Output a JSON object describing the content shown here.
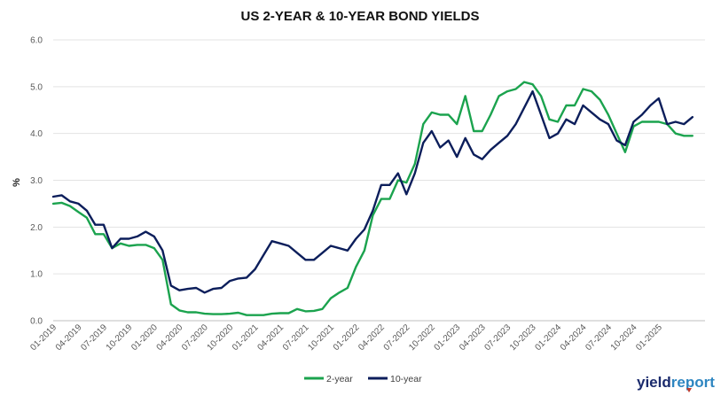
{
  "chart_data": {
    "type": "line",
    "title": "US 2-YEAR & 10-YEAR BOND YIELDS",
    "ylabel": "%",
    "xlabel": "",
    "ylim": [
      0,
      6
    ],
    "y_ticks": [
      "0.0",
      "1.0",
      "2.0",
      "3.0",
      "4.0",
      "5.0",
      "6.0"
    ],
    "x_ticks": [
      "01-2019",
      "04-2019",
      "07-2019",
      "10-2019",
      "01-2020",
      "04-2020",
      "07-2020",
      "10-2020",
      "01-2021",
      "04-2021",
      "07-2021",
      "10-2021",
      "01-2022",
      "04-2022",
      "07-2022",
      "10-2022",
      "01-2023",
      "04-2023",
      "07-2023",
      "10-2023",
      "01-2024",
      "04-2024",
      "07-2024",
      "10-2024",
      "01-2025"
    ],
    "x": [
      "2019-01",
      "2019-02",
      "2019-03",
      "2019-04",
      "2019-05",
      "2019-06",
      "2019-07",
      "2019-08",
      "2019-09",
      "2019-10",
      "2019-11",
      "2019-12",
      "2020-01",
      "2020-02",
      "2020-03",
      "2020-04",
      "2020-05",
      "2020-06",
      "2020-07",
      "2020-08",
      "2020-09",
      "2020-10",
      "2020-11",
      "2020-12",
      "2021-01",
      "2021-02",
      "2021-03",
      "2021-04",
      "2021-05",
      "2021-06",
      "2021-07",
      "2021-08",
      "2021-09",
      "2021-10",
      "2021-11",
      "2021-12",
      "2022-01",
      "2022-02",
      "2022-03",
      "2022-04",
      "2022-05",
      "2022-06",
      "2022-07",
      "2022-08",
      "2022-09",
      "2022-10",
      "2022-11",
      "2022-12",
      "2023-01",
      "2023-02",
      "2023-03",
      "2023-04",
      "2023-05",
      "2023-06",
      "2023-07",
      "2023-08",
      "2023-09",
      "2023-10",
      "2023-11",
      "2023-12",
      "2024-01",
      "2024-02",
      "2024-03",
      "2024-04",
      "2024-05",
      "2024-06",
      "2024-07",
      "2024-08",
      "2024-09",
      "2024-10",
      "2024-11",
      "2024-12",
      "2025-01",
      "2025-02",
      "2025-03",
      "2025-04",
      "2025-05"
    ],
    "series": [
      {
        "name": "2-year",
        "color": "#1ba34e",
        "values": [
          2.5,
          2.52,
          2.45,
          2.32,
          2.2,
          1.85,
          1.85,
          1.55,
          1.65,
          1.6,
          1.62,
          1.62,
          1.55,
          1.3,
          0.35,
          0.22,
          0.18,
          0.18,
          0.15,
          0.14,
          0.14,
          0.15,
          0.17,
          0.12,
          0.12,
          0.12,
          0.15,
          0.16,
          0.16,
          0.25,
          0.2,
          0.21,
          0.25,
          0.48,
          0.6,
          0.7,
          1.15,
          1.5,
          2.25,
          2.6,
          2.6,
          3.0,
          2.95,
          3.35,
          4.2,
          4.45,
          4.4,
          4.4,
          4.2,
          4.8,
          4.05,
          4.05,
          4.4,
          4.8,
          4.9,
          4.95,
          5.1,
          5.05,
          4.8,
          4.3,
          4.25,
          4.6,
          4.6,
          4.95,
          4.9,
          4.72,
          4.4,
          4.0,
          3.6,
          4.15,
          4.25,
          4.25,
          4.25,
          4.2,
          4.0,
          3.95,
          3.95
        ]
      },
      {
        "name": "10-year",
        "color": "#0c1e5b",
        "values": [
          2.65,
          2.68,
          2.55,
          2.5,
          2.35,
          2.05,
          2.05,
          1.55,
          1.75,
          1.75,
          1.8,
          1.9,
          1.8,
          1.5,
          0.75,
          0.65,
          0.68,
          0.7,
          0.6,
          0.68,
          0.7,
          0.85,
          0.9,
          0.92,
          1.1,
          1.4,
          1.7,
          1.65,
          1.6,
          1.45,
          1.3,
          1.3,
          1.45,
          1.6,
          1.55,
          1.5,
          1.75,
          1.95,
          2.35,
          2.9,
          2.9,
          3.15,
          2.7,
          3.15,
          3.8,
          4.05,
          3.7,
          3.85,
          3.5,
          3.9,
          3.55,
          3.45,
          3.65,
          3.8,
          3.95,
          4.2,
          4.55,
          4.9,
          4.4,
          3.9,
          4.0,
          4.3,
          4.2,
          4.6,
          4.45,
          4.3,
          4.2,
          3.85,
          3.75,
          4.25,
          4.4,
          4.6,
          4.75,
          4.2,
          4.25,
          4.2,
          4.35
        ]
      }
    ],
    "legend_position": "bottom-center",
    "grid": "horizontal"
  },
  "brand": {
    "part1": "yield",
    "part2": "report",
    "color1": "#1a2a6c",
    "color2": "#2e86c1"
  }
}
